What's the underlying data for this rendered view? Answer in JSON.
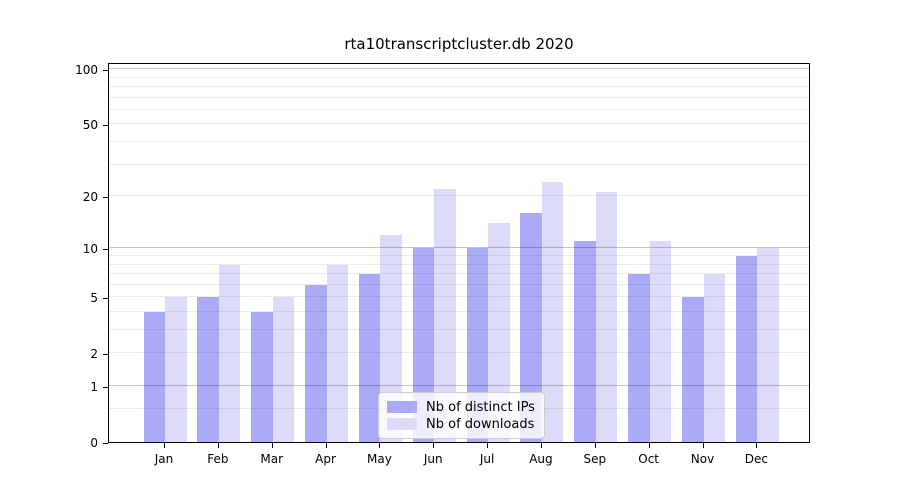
{
  "title": "rta10transcriptcluster.db 2020",
  "chart_data": {
    "type": "bar",
    "title": "rta10transcriptcluster.db 2020",
    "categories": [
      "Jan 2020",
      "Feb 2020",
      "Mar 2020",
      "Apr 2020",
      "May 2020",
      "Jun 2020",
      "Jul 2020",
      "Aug 2020",
      "Sep 2020",
      "Oct 2020",
      "Nov 2020",
      "Dec 2020"
    ],
    "category_line1": [
      "Jan",
      "Feb",
      "Mar",
      "Apr",
      "May",
      "Jun",
      "Jul",
      "Aug",
      "Sep",
      "Oct",
      "Nov",
      "Dec"
    ],
    "category_line2": "2020",
    "series": [
      {
        "name": "Nb of distinct IPs",
        "color": "#aaaaf6",
        "values": [
          4,
          5,
          4,
          6,
          7,
          10,
          10,
          16,
          11,
          7,
          5,
          9
        ]
      },
      {
        "name": "Nb of downloads",
        "color": "#dcdcf8",
        "values": [
          5,
          8,
          5,
          8,
          12,
          22,
          14,
          24,
          21,
          11,
          7,
          10
        ]
      }
    ],
    "xlabel": "",
    "ylabel": "",
    "yscale": "log1p",
    "yticks": [
      0,
      1,
      2,
      5,
      10,
      20,
      50,
      100
    ],
    "ylim": [
      0,
      109.3
    ],
    "grid": true,
    "major_gridlines": [
      1,
      10,
      100
    ],
    "minor_gridlines": [
      0.5,
      2,
      3,
      4,
      5,
      6,
      7,
      8,
      9,
      20,
      30,
      40,
      50,
      60,
      70,
      80,
      90
    ],
    "legend_position": "lower center",
    "legend_labels": [
      "Nb of distinct IPs",
      "Nb of downloads"
    ]
  }
}
